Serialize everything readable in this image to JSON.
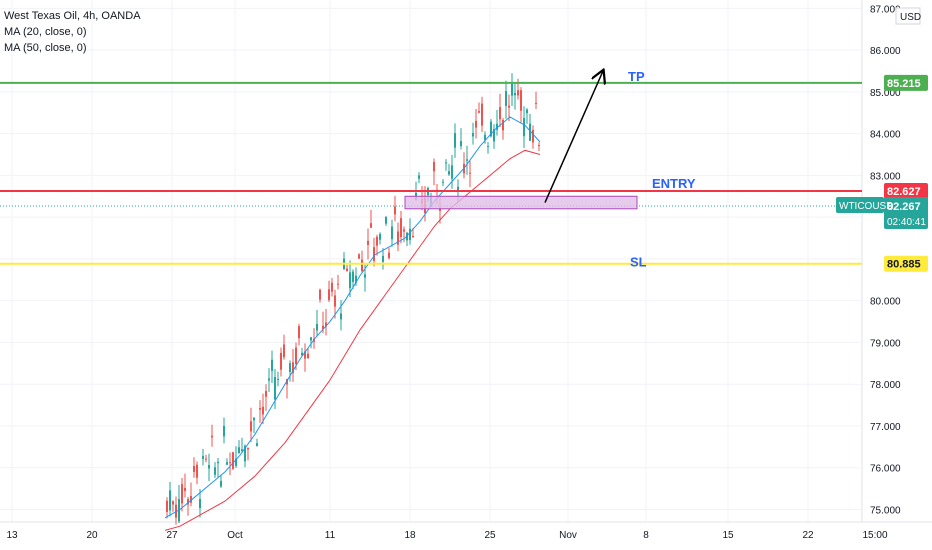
{
  "legend": {
    "title": "West Texas Oil, 4h, OANDA",
    "ma20": "MA (20, close, 0)",
    "ma50": "MA (50, close, 0)"
  },
  "currency": "USD",
  "annotations": {
    "tp": "TP",
    "entry": "ENTRY",
    "sl": "SL"
  },
  "colors": {
    "up": "#26a69a",
    "down": "#ef5350",
    "ma20": "#2196f3",
    "ma50": "#f23645",
    "tp_line": "#4caf50",
    "entry_line": "#f23645",
    "sl_line": "#ffeb3b",
    "zone_fill": "#e1bee7",
    "zone_border": "#ab47bc",
    "label_text": "#2962ff",
    "symbol_tag": "#26a69a"
  },
  "chart_data": {
    "type": "line",
    "ylim": [
      74.7,
      87.2
    ],
    "y_ticks": [
      75.0,
      76.0,
      77.0,
      78.0,
      79.0,
      80.0,
      81.0,
      82.0,
      83.0,
      84.0,
      85.0,
      86.0,
      87.0
    ],
    "y_tick_labels": [
      "75.000",
      "76.000",
      "77.000",
      "78.000",
      "79.000",
      "80.000",
      "",
      "",
      "83.000",
      "84.000",
      "85.000",
      "86.000",
      "87.000"
    ],
    "x_ticks": [
      "13",
      "20",
      "27",
      "Oct",
      "11",
      "18",
      "25",
      "Nov",
      "8",
      "15",
      "22",
      "15:00"
    ],
    "levels": {
      "tp": {
        "value": 85.215,
        "label": "85.215"
      },
      "entry": {
        "value": 82.627,
        "label": "82.627"
      },
      "sl": {
        "value": 80.885,
        "label": "80.885"
      },
      "last": {
        "value": 82.267,
        "label": "82.267",
        "symbol": "WTICOUSD",
        "countdown": "02:40:41"
      }
    },
    "entry_zone": {
      "top": 82.5,
      "bottom": 82.2
    },
    "series": [
      {
        "name": "MA (20, close, 0)",
        "values": [
          74.8,
          75.0,
          75.3,
          75.6,
          75.9,
          76.3,
          76.8,
          77.4,
          78.0,
          78.6,
          79.1,
          79.5,
          80.0,
          80.6,
          81.1,
          81.3,
          81.5,
          81.9,
          82.4,
          82.8,
          83.2,
          83.7,
          84.1,
          84.4,
          84.2,
          83.8
        ]
      },
      {
        "name": "MA (50, close, 0)",
        "values": [
          74.5,
          74.6,
          74.8,
          75.0,
          75.2,
          75.5,
          75.8,
          76.2,
          76.6,
          77.1,
          77.6,
          78.1,
          78.7,
          79.3,
          79.8,
          80.3,
          80.8,
          81.3,
          81.8,
          82.2,
          82.5,
          82.8,
          83.1,
          83.4,
          83.6,
          83.5
        ]
      }
    ]
  }
}
